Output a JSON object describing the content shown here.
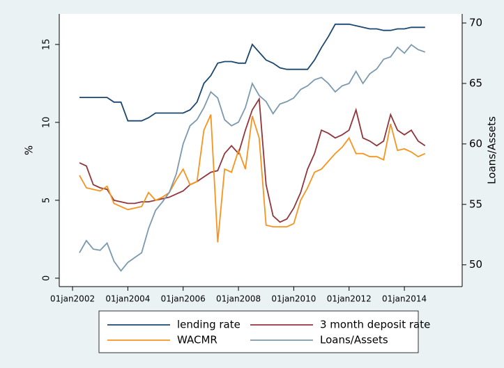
{
  "chart_data": {
    "type": "line",
    "ylabel": "%",
    "y2label": "Loans/Assets",
    "x": [
      2002.25,
      2002.5,
      2002.75,
      2003,
      2003.25,
      2003.5,
      2003.75,
      2004,
      2004.25,
      2004.5,
      2004.75,
      2005,
      2005.25,
      2005.5,
      2005.75,
      2006,
      2006.25,
      2006.5,
      2006.75,
      2007,
      2007.25,
      2007.5,
      2007.75,
      2008,
      2008.25,
      2008.5,
      2008.75,
      2009,
      2009.25,
      2009.5,
      2009.75,
      2010,
      2010.25,
      2010.5,
      2010.75,
      2011,
      2011.25,
      2011.5,
      2011.75,
      2012,
      2012.25,
      2012.5,
      2012.75,
      2013,
      2013.25,
      2013.5,
      2013.75,
      2014,
      2014.25,
      2014.5,
      2014.75
    ],
    "series": [
      {
        "name": "lending rate",
        "color": "#1a476f",
        "values": [
          11.6,
          11.6,
          11.6,
          11.6,
          11.6,
          11.3,
          11.3,
          10.1,
          10.1,
          10.1,
          10.3,
          10.6,
          10.6,
          10.6,
          10.6,
          10.6,
          10.8,
          11.3,
          12.5,
          13.0,
          13.8,
          13.9,
          13.9,
          13.8,
          13.8,
          15.0,
          14.5,
          14.0,
          13.8,
          13.5,
          13.4,
          13.4,
          13.4,
          13.4,
          14.0,
          14.8,
          15.5,
          16.3,
          16.3,
          16.3,
          16.2,
          16.1,
          16.0,
          16.0,
          15.9,
          15.9,
          16.0,
          16.0,
          16.1,
          16.1,
          16.1
        ]
      },
      {
        "name": "3 month deposit rate",
        "color": "#90353b",
        "values": [
          7.4,
          7.2,
          6.0,
          5.8,
          5.7,
          5.0,
          4.9,
          4.8,
          4.8,
          4.9,
          4.9,
          5.0,
          5.1,
          5.2,
          5.4,
          5.6,
          6.0,
          6.2,
          6.5,
          6.8,
          6.9,
          8.0,
          8.5,
          8.0,
          9.5,
          10.8,
          11.5,
          6.0,
          4.0,
          3.6,
          3.8,
          4.5,
          5.5,
          7.0,
          8.0,
          9.5,
          9.3,
          9.0,
          9.2,
          9.5,
          10.8,
          9.0,
          8.8,
          8.5,
          8.8,
          10.5,
          9.5,
          9.2,
          9.5,
          8.8,
          8.5
        ]
      },
      {
        "name": "WACMR",
        "color": "#f7941d",
        "values": [
          6.6,
          5.8,
          5.7,
          5.6,
          5.9,
          4.8,
          4.6,
          4.4,
          4.5,
          4.6,
          5.5,
          5.0,
          5.2,
          5.5,
          6.3,
          7.0,
          6.0,
          6.2,
          9.5,
          10.5,
          2.3,
          7.0,
          6.8,
          8.2,
          7.0,
          10.4,
          9.0,
          3.4,
          3.3,
          3.3,
          3.3,
          3.5,
          5.0,
          5.8,
          6.8,
          7.0,
          7.5,
          8.0,
          8.4,
          9.0,
          8.0,
          8.0,
          7.8,
          7.8,
          7.6,
          9.9,
          8.2,
          8.3,
          8.1,
          7.8,
          8.0
        ]
      },
      {
        "name": "Loans/Assets",
        "color": "#7b99ae",
        "axis": "y2",
        "values": [
          51.0,
          52.0,
          51.3,
          51.2,
          51.8,
          50.3,
          49.5,
          50.2,
          50.6,
          51.0,
          53.0,
          54.5,
          55.2,
          56.0,
          57.5,
          60.0,
          61.5,
          62.0,
          63.0,
          64.3,
          63.8,
          62.0,
          61.5,
          61.8,
          63.0,
          65.0,
          64.0,
          63.5,
          62.5,
          63.3,
          63.5,
          63.8,
          64.5,
          64.8,
          65.3,
          65.5,
          65.0,
          64.3,
          64.8,
          65.0,
          66.0,
          65.0,
          65.8,
          66.2,
          67.0,
          67.2,
          68.0,
          67.5,
          68.2,
          67.8,
          67.6
        ]
      }
    ],
    "xlim": [
      2001.52,
      2016.09
    ],
    "xticks": [
      {
        "value": 2002,
        "label": "01jan2002"
      },
      {
        "value": 2004,
        "label": "01jan2004"
      },
      {
        "value": 2006,
        "label": "01jan2006"
      },
      {
        "value": 2008,
        "label": "01jan2008"
      },
      {
        "value": 2010,
        "label": "01jan2010"
      },
      {
        "value": 2012,
        "label": "01jan2012"
      },
      {
        "value": 2014,
        "label": "01jan2014"
      }
    ],
    "ylim": [
      -0.54,
      16.96
    ],
    "yticks": [
      0,
      5,
      10,
      15
    ],
    "y2lim": [
      48.2,
      70.75
    ],
    "y2ticks": [
      50,
      55,
      60,
      65,
      70
    ],
    "legend": "bottom"
  }
}
